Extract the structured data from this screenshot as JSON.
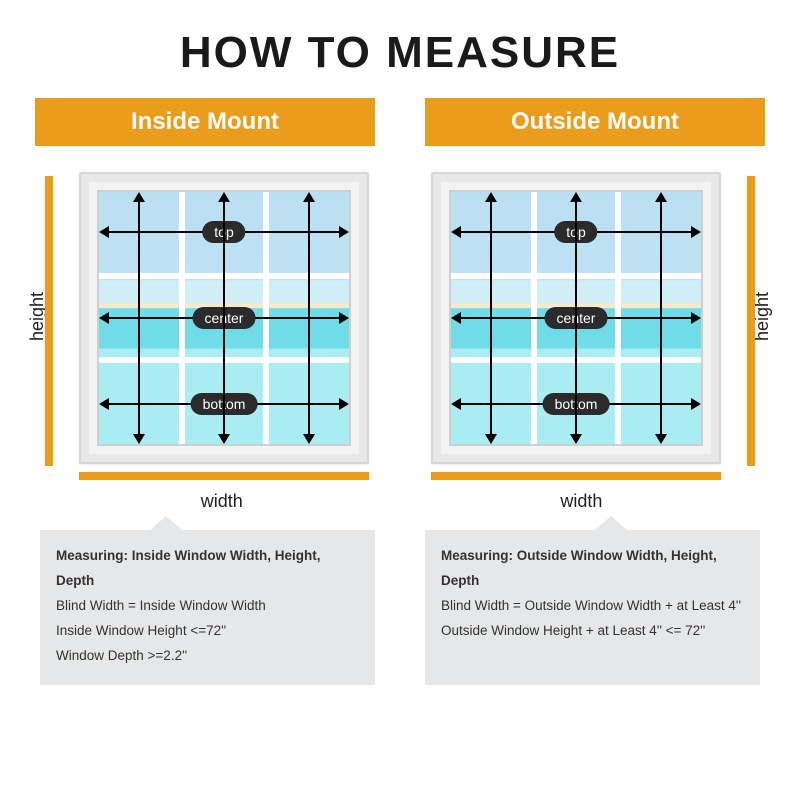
{
  "title": "HOW TO MEASURE",
  "colors": {
    "accent": "#eb9c1b",
    "header_text": "#ffffff",
    "title_text": "#1a1a1a",
    "body_text": "#333333",
    "info_bg": "#e6e7e8",
    "arrow": "#000000",
    "tag_bg": "#2b2b2b",
    "tag_text": "#ffffff",
    "frame": "#e8e8e8",
    "muntin": "#ffffff"
  },
  "axis_labels": {
    "height": "height",
    "width": "width"
  },
  "dim_tags": {
    "top": "top",
    "center": "center",
    "bottom": "bottom"
  },
  "panels": {
    "inside": {
      "header": "Inside Mount"
    },
    "outside": {
      "header": "Outside Mount"
    }
  },
  "info": {
    "inside": {
      "heading": "Measuring: Inside Window Width, Height, Depth",
      "lines": [
        "Blind Width = Inside Window Width",
        "Inside Window Height <=72''",
        "Window Depth >=2.2''"
      ]
    },
    "outside": {
      "heading": "Measuring: Outside Window Width, Height, Depth",
      "lines": [
        "Blind Width = Outside Window Width + at Least 4''",
        "Outside Window Height + at Least 4'' <= 72''"
      ]
    }
  },
  "diagram": {
    "muntin_v_pct": [
      33.3,
      66.6
    ],
    "muntin_h_pct": [
      33.3,
      66.6
    ],
    "h_dim_rows_pct": [
      16,
      50,
      84
    ],
    "v_dim_cols_pct": [
      16,
      50,
      84
    ]
  }
}
